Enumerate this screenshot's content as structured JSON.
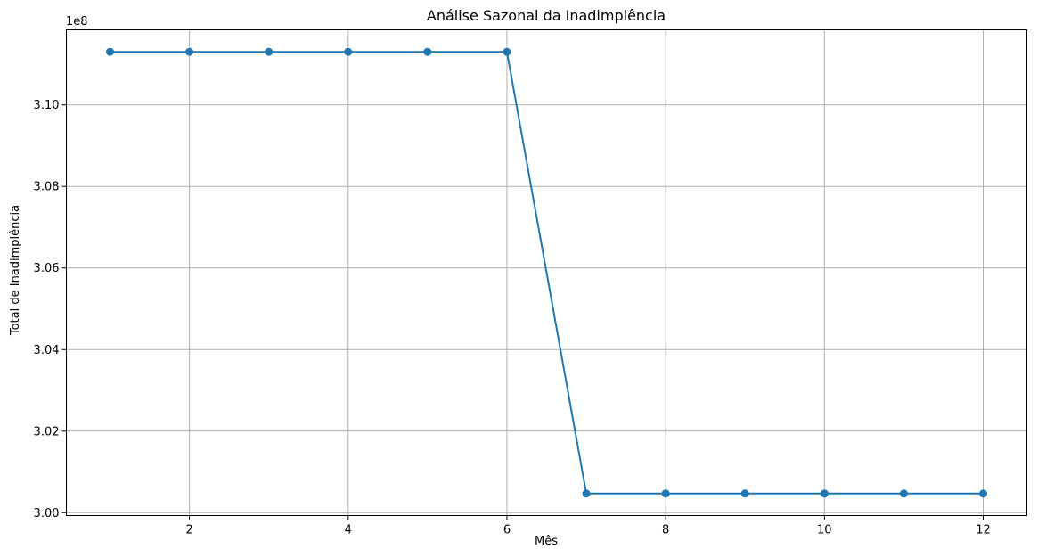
{
  "chart_data": {
    "type": "line",
    "title": "Análise Sazonal da Inadimplência",
    "xlabel": "Mês",
    "ylabel": "Total de Inadimplência",
    "y_offset_label": "1e8",
    "x": [
      1,
      2,
      3,
      4,
      5,
      6,
      7,
      8,
      9,
      10,
      11,
      12
    ],
    "series": [
      {
        "values": [
          311300000,
          311300000,
          311300000,
          311300000,
          311300000,
          311300000,
          300470000,
          300470000,
          300470000,
          300470000,
          300470000,
          300470000
        ],
        "color": "#1f77b4",
        "marker": "circle"
      }
    ],
    "xlim": [
      0.45,
      12.55
    ],
    "ylim": [
      299930000,
      311840000
    ],
    "x_ticks": [
      2,
      4,
      6,
      8,
      10,
      12
    ],
    "x_tick_labels": [
      "2",
      "4",
      "6",
      "8",
      "10",
      "12"
    ],
    "y_ticks": [
      300000000,
      302000000,
      304000000,
      306000000,
      308000000,
      310000000
    ],
    "y_tick_labels": [
      "3.00",
      "3.02",
      "3.04",
      "3.06",
      "3.08",
      "3.10"
    ],
    "grid": true,
    "legend": false
  }
}
